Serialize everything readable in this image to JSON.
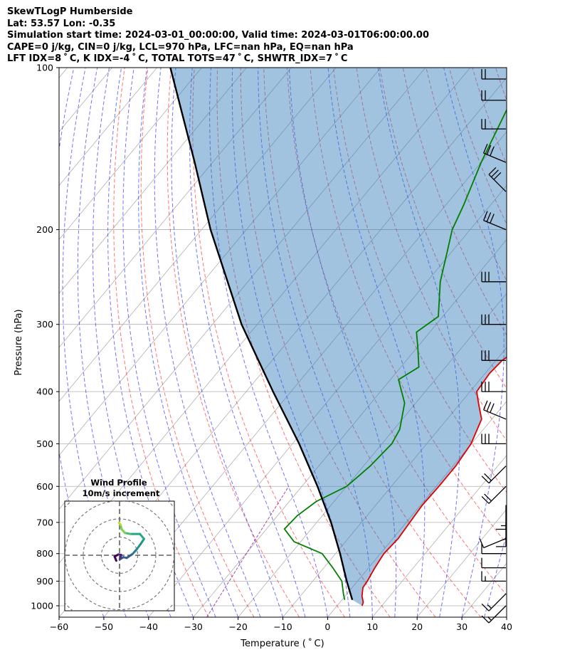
{
  "header": {
    "title": "SkewTLogP Humberside",
    "latlon": "Lat: 53.57   Lon: -0.35",
    "times": "Simulation start time: 2024-03-01_00:00:00, Valid time: 2024-03-01T06:00:00.00",
    "indices1": "CAPE=0 j/kg, CIN=0 j/kg, LCL=970 hPa, LFC=nan hPa, EQ=nan hPa",
    "indices2": "LFT IDX=8 ˚ C, K IDX=-4 ˚ C, TOTAL TOTS=47 ˚ C, SHWTR_IDX=7 ˚ C"
  },
  "chart_data": {
    "type": "line",
    "title": "SkewTLogP Humberside",
    "xlabel": "Temperature ( ˚ C)",
    "ylabel": "Pressure (hPa)",
    "xlim": [
      -60,
      40
    ],
    "ylim": [
      1050,
      100
    ],
    "y_scale": "log",
    "x_ticks": [
      "−60",
      "−50",
      "−40",
      "−30",
      "−20",
      "−10",
      "0",
      "10",
      "20",
      "30",
      "40"
    ],
    "x_tick_values": [
      -60,
      -50,
      -40,
      -30,
      -20,
      -10,
      0,
      10,
      20,
      30,
      40
    ],
    "y_ticks": [
      "100",
      "200",
      "300",
      "400",
      "500",
      "600",
      "700",
      "800",
      "900",
      "1000"
    ],
    "y_tick_values": [
      100,
      200,
      300,
      400,
      500,
      600,
      700,
      800,
      900,
      1000
    ],
    "grid": true,
    "series": [
      {
        "role": "temperature",
        "color": "#e00000",
        "points": [
          [
            1000,
            5.6
          ],
          [
            985,
            5.2
          ],
          [
            960,
            3.8
          ],
          [
            925,
            2.4
          ],
          [
            900,
            2.2
          ],
          [
            850,
            1.4
          ],
          [
            800,
            0.8
          ],
          [
            750,
            1.2
          ],
          [
            700,
            0.8
          ],
          [
            650,
            0.4
          ],
          [
            600,
            0.6
          ],
          [
            550,
            0.6
          ],
          [
            500,
            -0.1
          ],
          [
            450,
            -2.3
          ],
          [
            420,
            -6.0
          ],
          [
            400,
            -8.5
          ],
          [
            370,
            -9.0
          ],
          [
            350,
            -8.6
          ],
          [
            330,
            -6.8
          ],
          [
            310,
            -6.5
          ],
          [
            290,
            -6.8
          ],
          [
            250,
            -8.6
          ],
          [
            200,
            -11.0
          ],
          [
            180,
            -11.2
          ],
          [
            160,
            -15.0
          ],
          [
            140,
            -19.0
          ],
          [
            120,
            -25.0
          ],
          [
            110,
            -28.0
          ],
          [
            100,
            -30.0
          ]
        ]
      },
      {
        "role": "dewpoint",
        "color": "#008000",
        "points": [
          [
            975,
            0.6
          ],
          [
            950,
            -0.8
          ],
          [
            900,
            -3.5
          ],
          [
            850,
            -8.0
          ],
          [
            800,
            -13.0
          ],
          [
            760,
            -21.5
          ],
          [
            720,
            -26.0
          ],
          [
            680,
            -25.6
          ],
          [
            640,
            -24.0
          ],
          [
            600,
            -20.0
          ],
          [
            550,
            -18.5
          ],
          [
            500,
            -17.8
          ],
          [
            470,
            -18.7
          ],
          [
            420,
            -22.5
          ],
          [
            380,
            -28.2
          ],
          [
            360,
            -26.0
          ],
          [
            330,
            -30.0
          ],
          [
            310,
            -33.0
          ],
          [
            290,
            -31.0
          ],
          [
            250,
            -37.0
          ],
          [
            220,
            -41.0
          ],
          [
            200,
            -44.0
          ],
          [
            180,
            -46.0
          ],
          [
            150,
            -50.0
          ],
          [
            120,
            -54.0
          ],
          [
            100,
            -58.0
          ]
        ]
      },
      {
        "role": "parcel",
        "color": "#000000",
        "points": [
          [
            975,
            2.3
          ],
          [
            900,
            -2.4
          ],
          [
            800,
            -9.0
          ],
          [
            700,
            -16.8
          ],
          [
            600,
            -26.5
          ],
          [
            500,
            -38.5
          ],
          [
            400,
            -54.0
          ],
          [
            300,
            -73.5
          ],
          [
            200,
            -98.0
          ],
          [
            150,
            -114.0
          ],
          [
            100,
            -137.0
          ]
        ]
      }
    ],
    "wind_barbs": [
      {
        "p": 1000,
        "dir": "SW",
        "ms": 8
      },
      {
        "p": 950,
        "dir": "SW",
        "ms": 8
      },
      {
        "p": 900,
        "dir": "W",
        "ms": 8
      },
      {
        "p": 850,
        "dir": "W",
        "ms": 5
      },
      {
        "p": 800,
        "dir": "W",
        "ms": 6
      },
      {
        "p": 750,
        "dir": "WSW",
        "ms": 5
      },
      {
        "p": 700,
        "dir": "S",
        "ms": 5
      },
      {
        "p": 650,
        "dir": "S",
        "ms": 8
      },
      {
        "p": 600,
        "dir": "SW",
        "ms": 10
      },
      {
        "p": 550,
        "dir": "SW",
        "ms": 10
      },
      {
        "p": 500,
        "dir": "W",
        "ms": 15
      },
      {
        "p": 450,
        "dir": "WNW",
        "ms": 15
      },
      {
        "p": 400,
        "dir": "W",
        "ms": 15
      },
      {
        "p": 350,
        "dir": "W",
        "ms": 15
      },
      {
        "p": 300,
        "dir": "W",
        "ms": 15
      },
      {
        "p": 250,
        "dir": "W",
        "ms": 15
      },
      {
        "p": 200,
        "dir": "WNW",
        "ms": 15
      },
      {
        "p": 170,
        "dir": "NW",
        "ms": 15
      },
      {
        "p": 150,
        "dir": "WNW",
        "ms": 15
      },
      {
        "p": 130,
        "dir": "W",
        "ms": 10
      },
      {
        "p": 115,
        "dir": "W",
        "ms": 10
      },
      {
        "p": 105,
        "dir": "W",
        "ms": 10
      }
    ],
    "inset": {
      "title": "Wind Profile",
      "subtitle": "10m/s increment",
      "ring_step_ms": 10,
      "hodograph": [
        [
          -1.2,
          -2.0
        ],
        [
          -1.8,
          -0.5
        ],
        [
          -0.4,
          0.3
        ],
        [
          0.6,
          0.1
        ],
        [
          0.1,
          -1.5
        ],
        [
          1.4,
          -0.7
        ],
        [
          2.6,
          -1.0
        ],
        [
          4.8,
          0.5
        ],
        [
          6.4,
          2.3
        ],
        [
          7.8,
          4.2
        ],
        [
          9.0,
          6.0
        ],
        [
          7.5,
          7.8
        ],
        [
          4.0,
          7.8
        ],
        [
          2.0,
          8.2
        ],
        [
          0.8,
          9.5
        ],
        [
          0.3,
          11.3
        ],
        [
          -0.2,
          12.0
        ]
      ]
    }
  }
}
